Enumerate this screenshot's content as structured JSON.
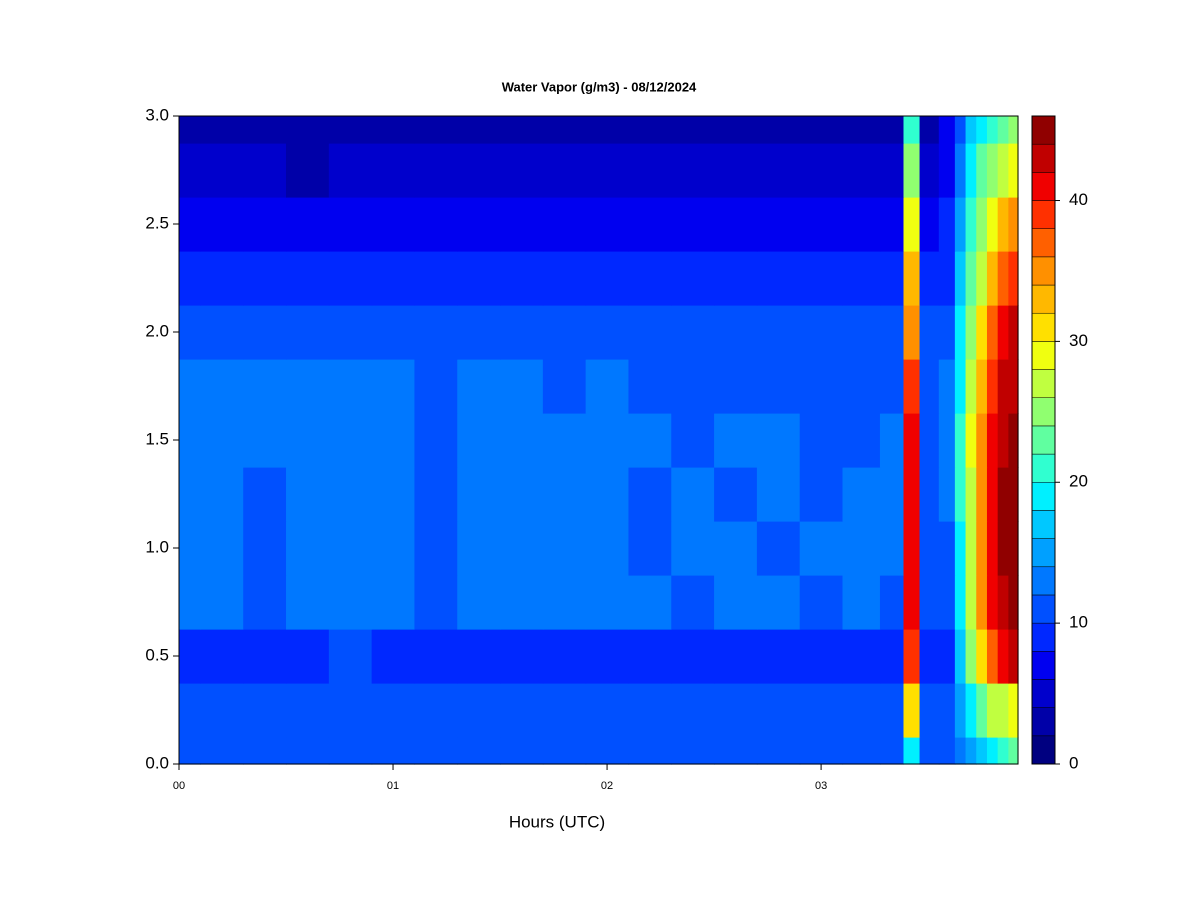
{
  "chart_data": {
    "type": "contour",
    "title": "Water Vapor (g/m3) - 08/12/2024",
    "x_label": "Hours (UTC)",
    "x": [
      0,
      0.2,
      0.4,
      0.6,
      0.8,
      1.0,
      1.2,
      1.4,
      1.6,
      1.8,
      2.0,
      2.2,
      2.4,
      2.6,
      2.8,
      3.0,
      3.2,
      3.35,
      3.42,
      3.5,
      3.6,
      3.65,
      3.7,
      3.75,
      3.8,
      3.85,
      3.9
    ],
    "y": [
      0,
      0.25,
      0.5,
      0.75,
      1.0,
      1.25,
      1.5,
      1.75,
      2.0,
      2.25,
      2.5,
      2.75,
      3.0
    ],
    "z": [
      [
        11.5,
        11.5,
        11.5,
        11.5,
        11.5,
        11.5,
        11.5,
        11.5,
        11.5,
        11.5,
        11.5,
        11.5,
        11.5,
        11.5,
        11.5,
        11.5,
        11.5,
        11,
        18,
        11,
        10,
        12,
        15,
        17,
        19,
        21,
        22
      ],
      [
        10.5,
        11,
        10.5,
        10.5,
        10.5,
        10,
        10.5,
        11,
        11,
        10.5,
        10.5,
        10.5,
        11,
        10.5,
        11,
        10.5,
        10.5,
        10.5,
        30,
        10,
        10,
        14,
        19,
        23,
        26,
        27,
        28
      ],
      [
        9.5,
        9,
        9.5,
        9.5,
        10,
        9.5,
        9,
        9.5,
        9.5,
        9.5,
        9,
        9.5,
        9.5,
        9.5,
        9,
        9.5,
        9.5,
        9.5,
        38,
        9,
        9,
        16,
        24,
        30,
        36,
        40,
        42
      ],
      [
        12.5,
        12,
        11,
        12,
        12.5,
        12,
        11,
        12.5,
        12.5,
        12,
        12.5,
        12,
        11,
        12.5,
        12,
        11,
        12,
        11,
        40,
        10,
        11,
        18,
        26,
        34,
        40,
        43,
        44
      ],
      [
        12.5,
        12.5,
        11,
        12.5,
        12.5,
        12.5,
        11,
        13,
        12.5,
        12,
        13,
        11,
        12.5,
        12,
        11,
        12.5,
        12.5,
        12,
        41,
        10,
        11,
        19,
        27,
        35,
        41,
        44,
        45
      ],
      [
        13,
        12.5,
        11,
        12.5,
        12.5,
        12.5,
        11,
        12.5,
        13,
        13,
        12,
        11,
        12,
        11,
        12.5,
        11,
        12.5,
        12,
        41,
        11,
        12,
        20,
        27,
        35,
        41,
        44,
        45
      ],
      [
        12.5,
        12.5,
        12,
        12.5,
        12.5,
        12.5,
        11,
        12.5,
        12.5,
        12.5,
        12,
        12.5,
        11.5,
        12,
        12,
        11,
        11,
        12,
        40,
        11,
        12,
        20,
        28,
        35,
        41,
        43,
        44
      ],
      [
        12.5,
        12,
        12.5,
        12.5,
        12.5,
        12,
        11,
        12,
        12.5,
        11,
        12,
        11,
        11,
        11,
        11,
        11,
        11,
        11,
        38,
        11,
        12,
        19,
        26,
        33,
        39,
        42,
        43
      ],
      [
        11,
        11,
        10.5,
        11,
        11,
        10.5,
        10.5,
        11,
        11.5,
        11,
        10.5,
        11,
        10.5,
        11,
        11,
        11,
        11.5,
        10.5,
        35,
        10,
        11,
        18,
        24,
        30,
        36,
        40,
        42
      ],
      [
        8.5,
        8.5,
        9,
        8.5,
        8.5,
        9,
        8.5,
        8.5,
        9,
        8.5,
        8.5,
        8.5,
        8.5,
        8.5,
        9,
        8.5,
        9,
        8.5,
        32,
        8,
        9,
        16,
        22,
        27,
        32,
        36,
        38
      ],
      [
        6.5,
        6.5,
        6.5,
        6,
        6.5,
        7,
        6.5,
        6.5,
        7,
        6.5,
        6.5,
        6.5,
        6.5,
        6.5,
        6.5,
        6.5,
        6.5,
        6,
        28,
        6,
        8,
        14,
        20,
        25,
        29,
        32,
        34
      ],
      [
        4.5,
        4.5,
        4,
        3.5,
        4,
        4.5,
        4.5,
        4.5,
        5,
        4.5,
        4.5,
        4,
        4.5,
        4.5,
        4,
        4,
        4.5,
        4,
        24,
        4,
        7,
        12,
        18,
        22,
        25,
        27,
        28
      ],
      [
        2,
        2.5,
        3,
        3,
        2.5,
        3,
        3,
        3,
        3,
        3,
        3,
        3,
        3,
        3,
        3,
        3,
        3,
        3,
        20,
        3,
        6,
        10,
        16,
        19,
        21,
        23,
        24
      ]
    ],
    "levels": [
      0,
      2,
      4,
      6,
      8,
      10,
      12,
      14,
      16,
      18,
      20,
      22,
      24,
      26,
      28,
      30,
      32,
      34,
      36,
      38,
      40,
      42,
      44,
      46
    ],
    "colors": [
      "#000080",
      "#0000a8",
      "#0000cc",
      "#0000f0",
      "#0028ff",
      "#0050ff",
      "#0078ff",
      "#00a0ff",
      "#00c8ff",
      "#00f0ff",
      "#30ffd0",
      "#60ffa0",
      "#90ff70",
      "#c0ff40",
      "#f0ff10",
      "#ffe000",
      "#ffb800",
      "#ff9000",
      "#ff6000",
      "#ff3000",
      "#f00000",
      "#c00000",
      "#900000"
    ],
    "xlim": [
      0,
      3.92
    ],
    "ylim": [
      0,
      3.0
    ],
    "xticks": [
      {
        "value": 0,
        "label": "00"
      },
      {
        "value": 1,
        "label": "01"
      },
      {
        "value": 2,
        "label": "02"
      },
      {
        "value": 3,
        "label": "03"
      }
    ],
    "yticks": [
      {
        "value": 0,
        "label": "0.0"
      },
      0.5,
      {
        "value": 1,
        "label": "1.0"
      },
      1.5,
      {
        "value": 2,
        "label": "2.0"
      },
      2.5,
      {
        "value": 3,
        "label": "3.0"
      }
    ],
    "clim": [
      0,
      46
    ],
    "cticks": [
      0,
      10,
      20,
      30,
      40
    ]
  }
}
